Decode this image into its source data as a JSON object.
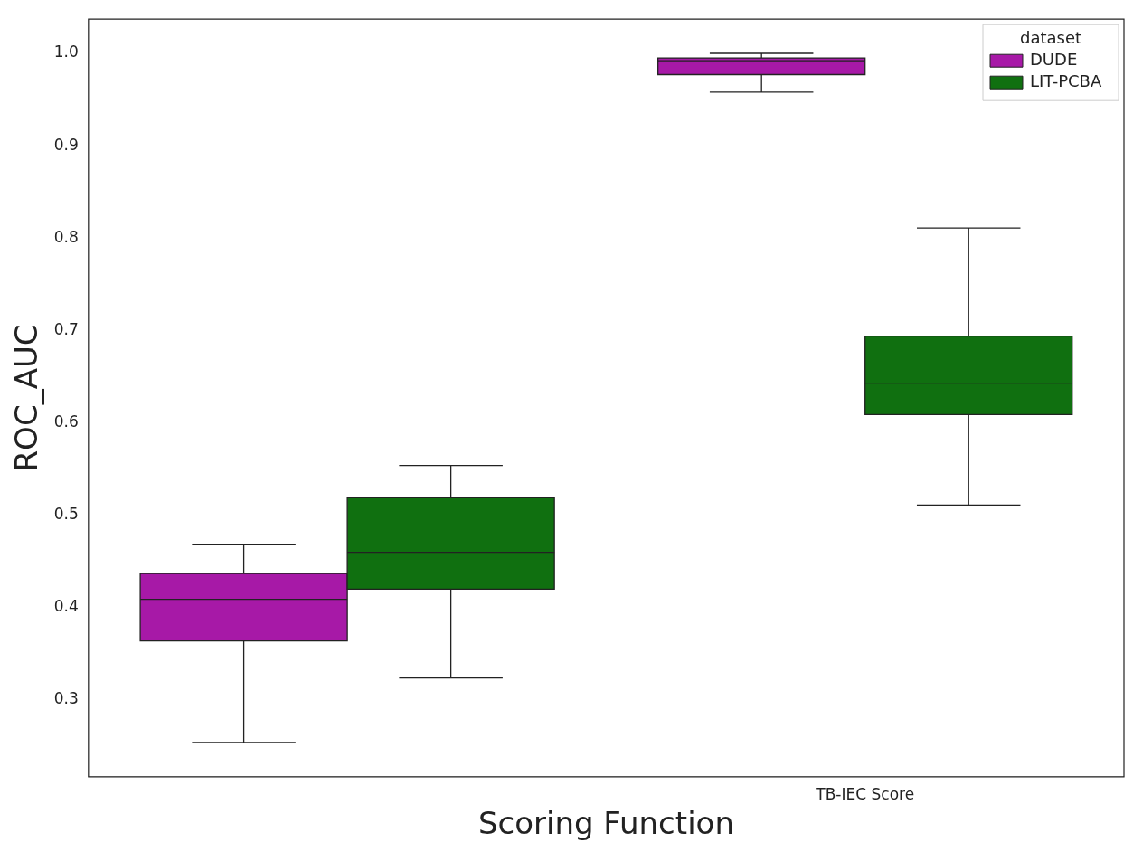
{
  "chart_data": {
    "type": "box",
    "xlabel": "Scoring Function",
    "ylabel": "ROC_AUC",
    "legend_title": "dataset",
    "categories": [
      null,
      "TB-IEC Score"
    ],
    "series": [
      {
        "name": "DUDE",
        "color": "#a719a7",
        "boxes": [
          {
            "low": 0.254,
            "q1": 0.364,
            "median": 0.409,
            "q3": 0.437,
            "high": 0.468
          },
          {
            "low": 0.958,
            "q1": 0.977,
            "median": 0.992,
            "q3": 0.995,
            "high": 1.0
          }
        ]
      },
      {
        "name": "LIT-PCBA",
        "color": "#107010",
        "boxes": [
          {
            "low": 0.324,
            "q1": 0.42,
            "median": 0.46,
            "q3": 0.519,
            "high": 0.554
          },
          {
            "low": 0.511,
            "q1": 0.609,
            "median": 0.643,
            "q3": 0.694,
            "high": 0.811
          }
        ]
      }
    ],
    "ylim": [
      0.217,
      1.037
    ],
    "yticks": [
      0.3,
      0.4,
      0.5,
      0.6,
      0.7,
      0.8,
      0.9,
      {
        "value": 1,
        "label": "1.0"
      }
    ],
    "grid": false,
    "legend": "top right"
  }
}
